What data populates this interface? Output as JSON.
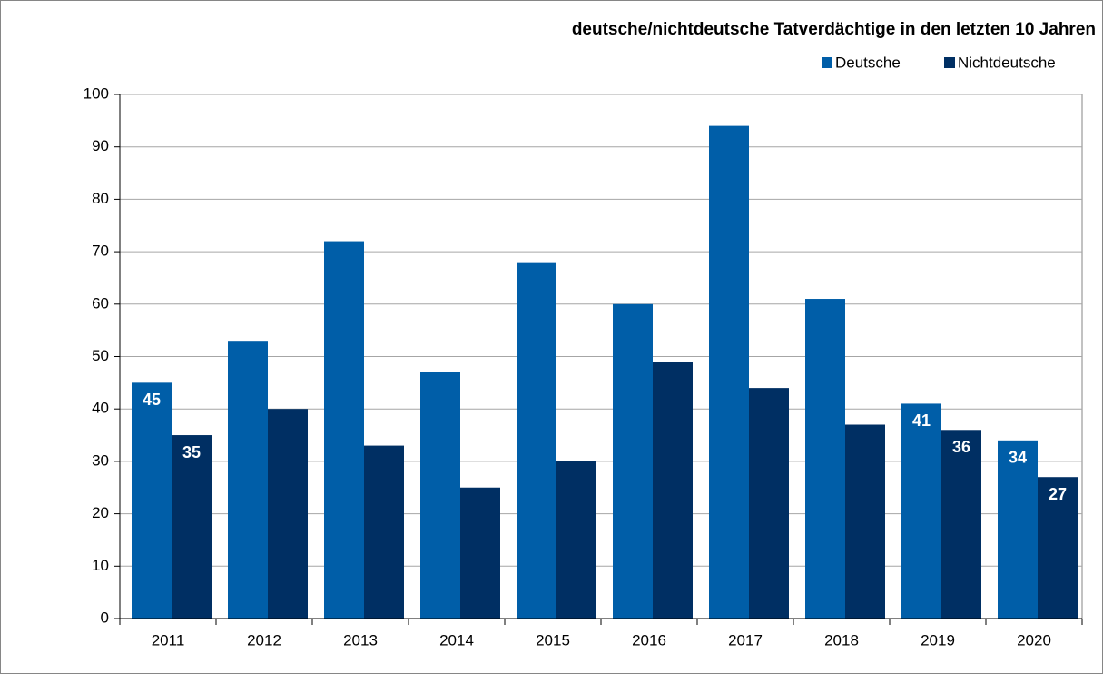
{
  "chart_data": {
    "type": "bar",
    "title": "deutsche/nichtdeutsche Tatverdächtige in den letzten 10 Jahren",
    "categories": [
      "2011",
      "2012",
      "2013",
      "2014",
      "2015",
      "2016",
      "2017",
      "2018",
      "2019",
      "2020"
    ],
    "series": [
      {
        "name": "Deutsche",
        "color": "#005ea8",
        "values": [
          45,
          53,
          72,
          47,
          68,
          60,
          94,
          61,
          41,
          34
        ],
        "value_labels": [
          "45",
          null,
          null,
          null,
          null,
          null,
          null,
          null,
          "41",
          "34"
        ]
      },
      {
        "name": "Nichtdeutsche",
        "color": "#002f63",
        "values": [
          35,
          40,
          33,
          25,
          30,
          49,
          44,
          37,
          36,
          27
        ],
        "value_labels": [
          "35",
          null,
          null,
          null,
          null,
          null,
          null,
          null,
          "36",
          "27"
        ]
      }
    ],
    "ylim": [
      0,
      100
    ],
    "yticks": [
      0,
      10,
      20,
      30,
      40,
      50,
      60,
      70,
      80,
      90,
      100
    ],
    "grid": true,
    "legend": "top-right"
  }
}
